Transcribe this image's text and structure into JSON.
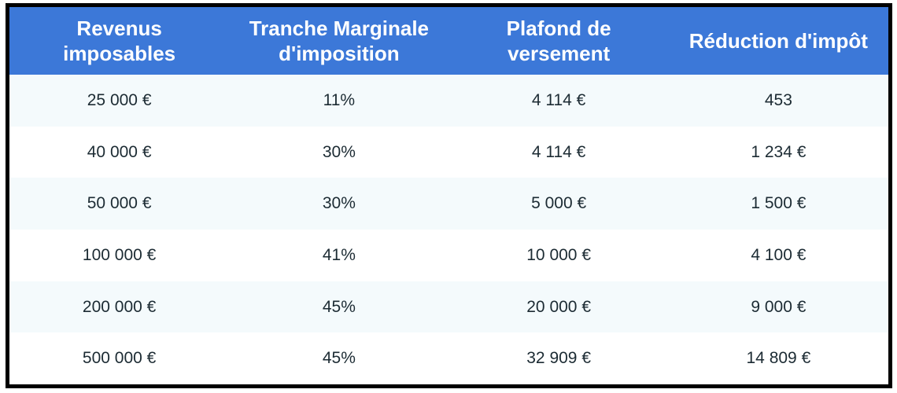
{
  "chart_data": {
    "type": "table",
    "columns": [
      "Revenus imposables",
      "Tranche Marginale d'imposition",
      "Plafond de versement",
      "Réduction d'impôt"
    ],
    "rows": [
      [
        "25 000 €",
        "11%",
        "4 114 €",
        "453"
      ],
      [
        "40 000 €",
        "30%",
        "4 114 €",
        "1 234 €"
      ],
      [
        "50 000 €",
        "30%",
        "5 000 €",
        "1 500 €"
      ],
      [
        "100 000 €",
        "41%",
        "10 000 €",
        "4 100 €"
      ],
      [
        "200 000 €",
        "45%",
        "20 000 €",
        "9 000 €"
      ],
      [
        "500 000 €",
        "45%",
        "32 909 €",
        "14 809 €"
      ]
    ],
    "layout": {
      "legend": "none",
      "grid": "off",
      "header_position": "top",
      "row_striping": "odd-rows-tinted"
    }
  },
  "colors": {
    "header_bg": "#3c78d8",
    "header_text": "#ffffff",
    "row_odd_bg": "#f4fafc",
    "row_even_bg": "#ffffff",
    "body_text": "#1c2b33",
    "border": "#000000",
    "page_bg": "#ffffff"
  }
}
